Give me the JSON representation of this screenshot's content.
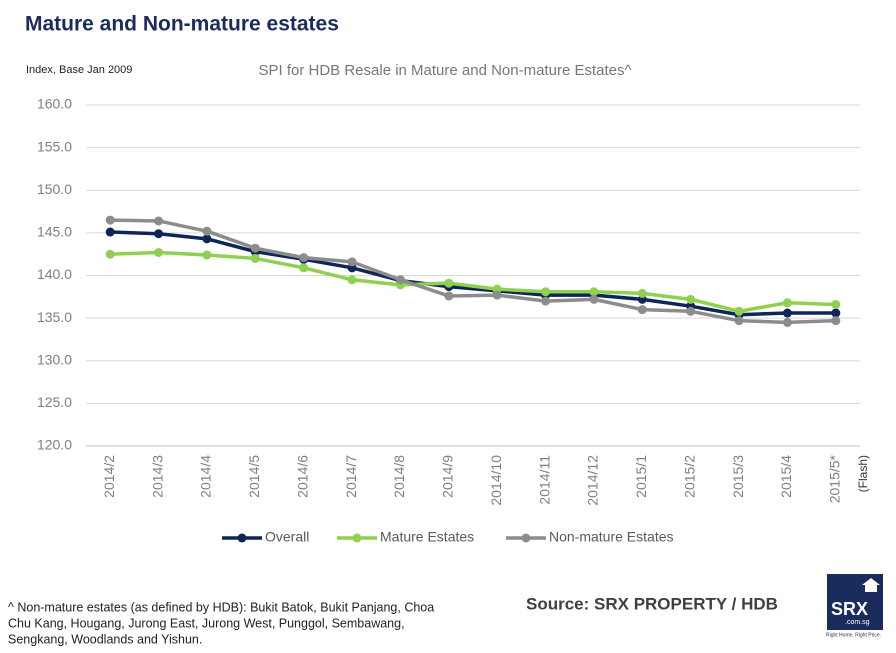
{
  "chart_data": {
    "type": "line",
    "page_title": "Mature and Non-mature estates",
    "title": "SPI for HDB Resale in Mature and Non-mature Estates^",
    "y_label": "Index, Base Jan 2009",
    "categories": [
      "2014/2",
      "2014/3",
      "2014/4",
      "2014/5",
      "2014/6",
      "2014/7",
      "2014/8",
      "2014/9",
      "2014/10",
      "2014/11",
      "2014/12",
      "2015/1",
      "2015/2",
      "2015/3",
      "2015/4",
      "2015/5*"
    ],
    "category_note": "(Flash)",
    "series": [
      {
        "name": "Overall",
        "color": "#0f2557",
        "values": [
          145.1,
          144.9,
          144.3,
          142.8,
          141.9,
          140.9,
          139.4,
          138.7,
          138.2,
          137.7,
          137.7,
          137.2,
          136.4,
          135.4,
          135.6,
          135.6
        ]
      },
      {
        "name": "Mature Estates",
        "color": "#8fd14f",
        "values": [
          142.5,
          142.7,
          142.4,
          142.0,
          140.9,
          139.5,
          138.9,
          139.1,
          138.4,
          138.1,
          138.1,
          137.9,
          137.2,
          135.8,
          136.8,
          136.6
        ]
      },
      {
        "name": "Non-mature Estates",
        "color": "#8c8c8c",
        "values": [
          146.5,
          146.4,
          145.2,
          143.2,
          142.1,
          141.6,
          139.5,
          137.6,
          137.7,
          137.0,
          137.2,
          136.0,
          135.8,
          134.7,
          134.5,
          134.7
        ]
      }
    ],
    "ylim": [
      120,
      160
    ],
    "yticks": [
      {
        "value": 120,
        "label": "120.0"
      },
      {
        "value": 125,
        "label": "125.0"
      },
      {
        "value": 130,
        "label": "130.0"
      },
      {
        "value": 135,
        "label": "135.0"
      },
      {
        "value": 140,
        "label": "140.0"
      },
      {
        "value": 145,
        "label": "145.0"
      },
      {
        "value": 150,
        "label": "150.0"
      },
      {
        "value": 155,
        "label": "155.0"
      },
      {
        "value": 160,
        "label": "160.0"
      }
    ],
    "grid": true,
    "legend": "bottom",
    "source": "Source:  SRX PROPERTY / HDB",
    "footnote": [
      "^ Non-mature estates (as defined by HDB): Bukit Batok, Bukit Panjang, Choa",
      "Chu Kang, Hougang, Jurong East, Jurong West, Punggol, Sembawang,",
      "Sengkang, Woodlands and Yishun."
    ],
    "logo": {
      "main": "SRX",
      "sub": ".com.sg",
      "tagline": "Right Home. Right Price."
    }
  }
}
